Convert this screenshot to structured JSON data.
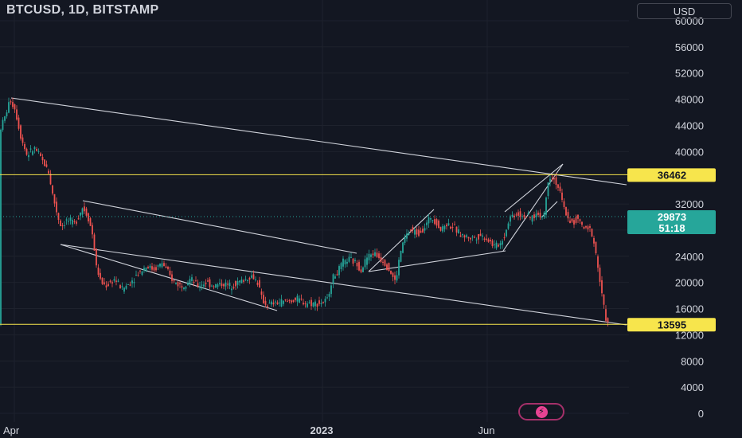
{
  "header": {
    "title": "BTCUSD, 1D, BITSTAMP",
    "currency_button": "USD"
  },
  "icons": {
    "bolt": "lightning-bolt-icon"
  },
  "colors": {
    "background": "#131722",
    "up": "#26a69a",
    "down": "#ef5350",
    "level_line": "#f7e54c",
    "trend_line": "#d1d4dc",
    "axis_text": "#d1d4dc"
  },
  "chart_data": {
    "type": "candlestick",
    "symbol": "BTCUSD",
    "interval": "1D",
    "exchange": "BITSTAMP",
    "ylim": [
      0,
      60000
    ],
    "y_ticks": [
      0,
      4000,
      8000,
      12000,
      16000,
      20000,
      24000,
      28000,
      32000,
      36000,
      40000,
      44000,
      48000,
      52000,
      56000,
      60000
    ],
    "x_tick_labels": [
      "Apr",
      "2023",
      "Jun"
    ],
    "last_price": "29873",
    "countdown": "51:18",
    "horizontal_levels": [
      {
        "value": 36462,
        "label": "36462"
      },
      {
        "value": 13595,
        "label": "13595"
      }
    ],
    "price_path": [
      [
        0,
        43000
      ],
      [
        8,
        45500
      ],
      [
        14,
        48000
      ],
      [
        20,
        46500
      ],
      [
        28,
        42000
      ],
      [
        35,
        39500
      ],
      [
        45,
        40500
      ],
      [
        55,
        38500
      ],
      [
        62,
        37000
      ],
      [
        68,
        33000
      ],
      [
        74,
        30000
      ],
      [
        78,
        28500
      ],
      [
        85,
        29500
      ],
      [
        95,
        29000
      ],
      [
        105,
        31500
      ],
      [
        112,
        30000
      ],
      [
        118,
        27000
      ],
      [
        122,
        22500
      ],
      [
        128,
        20000
      ],
      [
        135,
        19500
      ],
      [
        145,
        20500
      ],
      [
        155,
        19000
      ],
      [
        165,
        20000
      ],
      [
        175,
        21500
      ],
      [
        185,
        22500
      ],
      [
        195,
        22000
      ],
      [
        205,
        23000
      ],
      [
        212,
        21500
      ],
      [
        220,
        20000
      ],
      [
        230,
        19500
      ],
      [
        240,
        20500
      ],
      [
        250,
        19500
      ],
      [
        260,
        20000
      ],
      [
        270,
        19500
      ],
      [
        280,
        19800
      ],
      [
        290,
        19500
      ],
      [
        300,
        20000
      ],
      [
        310,
        20500
      ],
      [
        318,
        21000
      ],
      [
        325,
        20000
      ],
      [
        330,
        17500
      ],
      [
        336,
        16500
      ],
      [
        345,
        16800
      ],
      [
        355,
        17000
      ],
      [
        365,
        17200
      ],
      [
        375,
        17400
      ],
      [
        385,
        16900
      ],
      [
        395,
        16800
      ],
      [
        405,
        16900
      ],
      [
        412,
        17200
      ],
      [
        418,
        20500
      ],
      [
        425,
        21500
      ],
      [
        432,
        23000
      ],
      [
        440,
        23500
      ],
      [
        448,
        23000
      ],
      [
        455,
        22000
      ],
      [
        462,
        23800
      ],
      [
        470,
        24500
      ],
      [
        478,
        23800
      ],
      [
        485,
        23000
      ],
      [
        492,
        21500
      ],
      [
        498,
        20000
      ],
      [
        504,
        24500
      ],
      [
        510,
        27000
      ],
      [
        518,
        28000
      ],
      [
        526,
        27500
      ],
      [
        535,
        28500
      ],
      [
        542,
        30000
      ],
      [
        548,
        29500
      ],
      [
        555,
        28000
      ],
      [
        562,
        29000
      ],
      [
        570,
        28500
      ],
      [
        578,
        27500
      ],
      [
        585,
        27000
      ],
      [
        595,
        26800
      ],
      [
        605,
        27200
      ],
      [
        615,
        26500
      ],
      [
        622,
        25500
      ],
      [
        630,
        26000
      ],
      [
        636,
        27500
      ],
      [
        641,
        30000
      ],
      [
        650,
        30500
      ],
      [
        660,
        30200
      ],
      [
        668,
        29800
      ],
      [
        676,
        30500
      ],
      [
        682,
        30000
      ],
      [
        686,
        31000
      ],
      [
        689,
        35500
      ],
      [
        693,
        36300
      ],
      [
        697,
        35800
      ],
      [
        701,
        35000
      ],
      [
        705,
        33500
      ],
      [
        709,
        31500
      ],
      [
        714,
        30000
      ],
      [
        720,
        29000
      ],
      [
        726,
        30000
      ],
      [
        731,
        29000
      ],
      [
        736,
        28000
      ],
      [
        741,
        28500
      ],
      [
        746,
        27000
      ],
      [
        751,
        23500
      ],
      [
        756,
        19000
      ],
      [
        760,
        16000
      ],
      [
        764,
        13600
      ]
    ]
  }
}
